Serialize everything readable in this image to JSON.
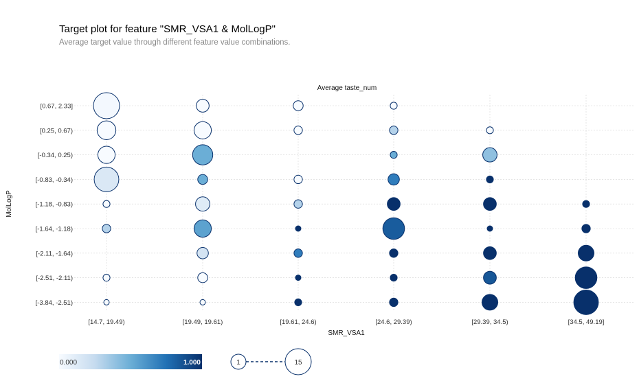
{
  "header": {
    "title": "Target plot for feature \"SMR_VSA1 & MolLogP\"",
    "subtitle": "Average target value through different feature value combinations."
  },
  "chart_data": {
    "type": "scatter",
    "title": "Average taste_num",
    "xlabel": "SMR_VSA1",
    "ylabel": "MolLogP",
    "x_categories": [
      "[14.7, 19.49)",
      "[19.49, 19.61)",
      "[19.61, 24.6)",
      "[24.6, 29.39)",
      "[29.39, 34.5)",
      "[34.5, 49.19]"
    ],
    "y_categories": [
      "[0.67, 2.33]",
      "[0.25, 0.67)",
      "[-0.34, 0.25)",
      "[-0.83, -0.34)",
      "[-1.18, -0.83)",
      "[-1.64, -1.18)",
      "[-2.11, -1.64)",
      "[-2.51, -2.11)",
      "[-3.84, -2.51)"
    ],
    "grid": true,
    "colorscale": {
      "min_label": "0.000",
      "max_label": "1.000",
      "low_color": "#f7fbff",
      "high_color": "#08306b"
    },
    "size_legend": {
      "min_label": "1",
      "max_label": "15"
    },
    "points": [
      {
        "x": "[14.7, 19.49)",
        "y": "[0.67, 2.33]",
        "value": 0.02,
        "count": 15
      },
      {
        "x": "[14.7, 19.49)",
        "y": "[0.25, 0.67)",
        "value": 0.0,
        "count": 10
      },
      {
        "x": "[14.7, 19.49)",
        "y": "[-0.34, 0.25)",
        "value": 0.0,
        "count": 9
      },
      {
        "x": "[14.7, 19.49)",
        "y": "[-0.83, -0.34)",
        "value": 0.15,
        "count": 14
      },
      {
        "x": "[14.7, 19.49)",
        "y": "[-1.18, -0.83)",
        "value": 0.0,
        "count": 2
      },
      {
        "x": "[14.7, 19.49)",
        "y": "[-1.64, -1.18)",
        "value": 0.3,
        "count": 3
      },
      {
        "x": "[14.7, 19.49)",
        "y": "[-2.51, -2.11)",
        "value": 0.0,
        "count": 2
      },
      {
        "x": "[14.7, 19.49)",
        "y": "[-3.84, -2.51)",
        "value": 0.0,
        "count": 1
      },
      {
        "x": "[19.49, 19.61)",
        "y": "[0.67, 2.33]",
        "value": 0.0,
        "count": 6
      },
      {
        "x": "[19.49, 19.61)",
        "y": "[0.25, 0.67)",
        "value": 0.0,
        "count": 9
      },
      {
        "x": "[19.49, 19.61)",
        "y": "[-0.34, 0.25)",
        "value": 0.5,
        "count": 11
      },
      {
        "x": "[19.49, 19.61)",
        "y": "[-0.83, -0.34)",
        "value": 0.5,
        "count": 4
      },
      {
        "x": "[19.49, 19.61)",
        "y": "[-1.18, -0.83)",
        "value": 0.12,
        "count": 7
      },
      {
        "x": "[19.49, 19.61)",
        "y": "[-1.64, -1.18)",
        "value": 0.55,
        "count": 9
      },
      {
        "x": "[19.49, 19.61)",
        "y": "[-2.11, -1.64)",
        "value": 0.18,
        "count": 5
      },
      {
        "x": "[19.49, 19.61)",
        "y": "[-2.51, -2.11)",
        "value": 0.0,
        "count": 4
      },
      {
        "x": "[19.49, 19.61)",
        "y": "[-3.84, -2.51)",
        "value": 0.0,
        "count": 1
      },
      {
        "x": "[19.61, 24.6)",
        "y": "[0.67, 2.33]",
        "value": 0.0,
        "count": 4
      },
      {
        "x": "[19.61, 24.6)",
        "y": "[0.25, 0.67)",
        "value": 0.0,
        "count": 3
      },
      {
        "x": "[19.61, 24.6)",
        "y": "[-0.83, -0.34)",
        "value": 0.0,
        "count": 3
      },
      {
        "x": "[19.61, 24.6)",
        "y": "[-1.18, -0.83)",
        "value": 0.3,
        "count": 3
      },
      {
        "x": "[19.61, 24.6)",
        "y": "[-1.64, -1.18)",
        "value": 1.0,
        "count": 1
      },
      {
        "x": "[19.61, 24.6)",
        "y": "[-2.11, -1.64)",
        "value": 0.7,
        "count": 3
      },
      {
        "x": "[19.61, 24.6)",
        "y": "[-2.51, -2.11)",
        "value": 1.0,
        "count": 1
      },
      {
        "x": "[19.61, 24.6)",
        "y": "[-3.84, -2.51)",
        "value": 1.0,
        "count": 2
      },
      {
        "x": "[24.6, 29.39)",
        "y": "[0.67, 2.33]",
        "value": 0.0,
        "count": 2
      },
      {
        "x": "[24.6, 29.39)",
        "y": "[0.25, 0.67)",
        "value": 0.3,
        "count": 3
      },
      {
        "x": "[24.6, 29.39)",
        "y": "[-0.34, 0.25)",
        "value": 0.5,
        "count": 2
      },
      {
        "x": "[24.6, 29.39)",
        "y": "[-0.83, -0.34)",
        "value": 0.7,
        "count": 5
      },
      {
        "x": "[24.6, 29.39)",
        "y": "[-1.18, -0.83)",
        "value": 1.0,
        "count": 6
      },
      {
        "x": "[24.6, 29.39)",
        "y": "[-1.64, -1.18)",
        "value": 0.83,
        "count": 12
      },
      {
        "x": "[24.6, 29.39)",
        "y": "[-2.11, -1.64)",
        "value": 1.0,
        "count": 3
      },
      {
        "x": "[24.6, 29.39)",
        "y": "[-2.51, -2.11)",
        "value": 1.0,
        "count": 2
      },
      {
        "x": "[24.6, 29.39)",
        "y": "[-3.84, -2.51)",
        "value": 1.0,
        "count": 3
      },
      {
        "x": "[29.39, 34.5)",
        "y": "[0.25, 0.67)",
        "value": 0.0,
        "count": 2
      },
      {
        "x": "[29.39, 34.5)",
        "y": "[-0.34, 0.25)",
        "value": 0.4,
        "count": 7
      },
      {
        "x": "[29.39, 34.5)",
        "y": "[-0.83, -0.34)",
        "value": 1.0,
        "count": 2
      },
      {
        "x": "[29.39, 34.5)",
        "y": "[-1.18, -0.83)",
        "value": 1.0,
        "count": 6
      },
      {
        "x": "[29.39, 34.5)",
        "y": "[-1.64, -1.18)",
        "value": 1.0,
        "count": 1
      },
      {
        "x": "[29.39, 34.5)",
        "y": "[-2.11, -1.64)",
        "value": 1.0,
        "count": 6
      },
      {
        "x": "[29.39, 34.5)",
        "y": "[-2.51, -2.11)",
        "value": 0.85,
        "count": 6
      },
      {
        "x": "[29.39, 34.5)",
        "y": "[-3.84, -2.51)",
        "value": 1.0,
        "count": 8
      },
      {
        "x": "[34.5, 49.19]",
        "y": "[-1.18, -0.83)",
        "value": 1.0,
        "count": 2
      },
      {
        "x": "[34.5, 49.19]",
        "y": "[-1.64, -1.18)",
        "value": 1.0,
        "count": 3
      },
      {
        "x": "[34.5, 49.19]",
        "y": "[-2.11, -1.64)",
        "value": 1.0,
        "count": 8
      },
      {
        "x": "[34.5, 49.19]",
        "y": "[-2.51, -2.11)",
        "value": 1.0,
        "count": 12
      },
      {
        "x": "[34.5, 49.19]",
        "y": "[-3.84, -2.51)",
        "value": 1.0,
        "count": 14
      }
    ]
  }
}
